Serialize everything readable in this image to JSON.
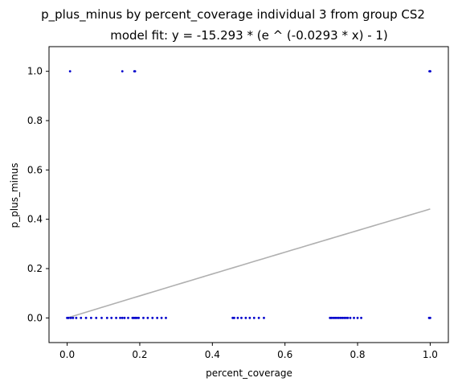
{
  "chart_data": {
    "type": "scatter",
    "title": "p_plus_minus by percent_coverage individual 3 from group CS2",
    "subtitle": "model fit: y = -15.293 * (e ^ (-0.0293 * x) - 1)",
    "xlabel": "percent_coverage",
    "ylabel": "p_plus_minus",
    "xlim": [
      -0.05,
      1.05
    ],
    "ylim": [
      -0.1,
      1.1
    ],
    "x_ticks": [
      0.0,
      0.2,
      0.4,
      0.6,
      0.8,
      1.0
    ],
    "x_tick_labels": [
      "0.0",
      "0.2",
      "0.4",
      "0.6",
      "0.8",
      "1.0"
    ],
    "y_ticks": [
      0.0,
      0.2,
      0.4,
      0.6,
      0.8,
      1.0
    ],
    "y_tick_labels": [
      "0.0",
      "0.2",
      "0.4",
      "0.6",
      "0.8",
      "1.0"
    ],
    "grid": false,
    "point_color": "#0000cc",
    "fit_color": "#b0b0b0",
    "fit": {
      "a": -15.293,
      "b": -0.0293,
      "x_range": [
        0.0,
        1.0
      ]
    },
    "points": [
      {
        "x": 0.008,
        "y": 1.0
      },
      {
        "x": 0.152,
        "y": 1.0
      },
      {
        "x": 0.185,
        "y": 1.0
      },
      {
        "x": 0.187,
        "y": 1.0
      },
      {
        "x": 1.0,
        "y": 1.0
      },
      {
        "x": 0.998,
        "y": 1.0
      },
      {
        "x": 1.0,
        "y": 1.0
      },
      {
        "x": 0.0,
        "y": 0.0
      },
      {
        "x": 0.004,
        "y": 0.0
      },
      {
        "x": 0.01,
        "y": 0.0
      },
      {
        "x": 0.016,
        "y": 0.0
      },
      {
        "x": 0.025,
        "y": 0.0
      },
      {
        "x": 0.038,
        "y": 0.0
      },
      {
        "x": 0.052,
        "y": 0.0
      },
      {
        "x": 0.066,
        "y": 0.0
      },
      {
        "x": 0.08,
        "y": 0.0
      },
      {
        "x": 0.095,
        "y": 0.0
      },
      {
        "x": 0.11,
        "y": 0.0
      },
      {
        "x": 0.122,
        "y": 0.0
      },
      {
        "x": 0.135,
        "y": 0.0
      },
      {
        "x": 0.146,
        "y": 0.0
      },
      {
        "x": 0.152,
        "y": 0.0
      },
      {
        "x": 0.158,
        "y": 0.0
      },
      {
        "x": 0.168,
        "y": 0.0
      },
      {
        "x": 0.18,
        "y": 0.0
      },
      {
        "x": 0.184,
        "y": 0.0
      },
      {
        "x": 0.188,
        "y": 0.0
      },
      {
        "x": 0.192,
        "y": 0.0
      },
      {
        "x": 0.197,
        "y": 0.0
      },
      {
        "x": 0.21,
        "y": 0.0
      },
      {
        "x": 0.222,
        "y": 0.0
      },
      {
        "x": 0.235,
        "y": 0.0
      },
      {
        "x": 0.248,
        "y": 0.0
      },
      {
        "x": 0.26,
        "y": 0.0
      },
      {
        "x": 0.272,
        "y": 0.0
      },
      {
        "x": 0.456,
        "y": 0.0
      },
      {
        "x": 0.46,
        "y": 0.0
      },
      {
        "x": 0.47,
        "y": 0.0
      },
      {
        "x": 0.48,
        "y": 0.0
      },
      {
        "x": 0.492,
        "y": 0.0
      },
      {
        "x": 0.503,
        "y": 0.0
      },
      {
        "x": 0.515,
        "y": 0.0
      },
      {
        "x": 0.528,
        "y": 0.0
      },
      {
        "x": 0.542,
        "y": 0.0
      },
      {
        "x": 0.724,
        "y": 0.0
      },
      {
        "x": 0.728,
        "y": 0.0
      },
      {
        "x": 0.733,
        "y": 0.0
      },
      {
        "x": 0.738,
        "y": 0.0
      },
      {
        "x": 0.743,
        "y": 0.0
      },
      {
        "x": 0.748,
        "y": 0.0
      },
      {
        "x": 0.753,
        "y": 0.0
      },
      {
        "x": 0.758,
        "y": 0.0
      },
      {
        "x": 0.763,
        "y": 0.0
      },
      {
        "x": 0.768,
        "y": 0.0
      },
      {
        "x": 0.773,
        "y": 0.0
      },
      {
        "x": 0.78,
        "y": 0.0
      },
      {
        "x": 0.79,
        "y": 0.0
      },
      {
        "x": 0.8,
        "y": 0.0
      },
      {
        "x": 0.81,
        "y": 0.0
      },
      {
        "x": 0.997,
        "y": 0.0
      },
      {
        "x": 1.0,
        "y": 0.0
      }
    ]
  }
}
